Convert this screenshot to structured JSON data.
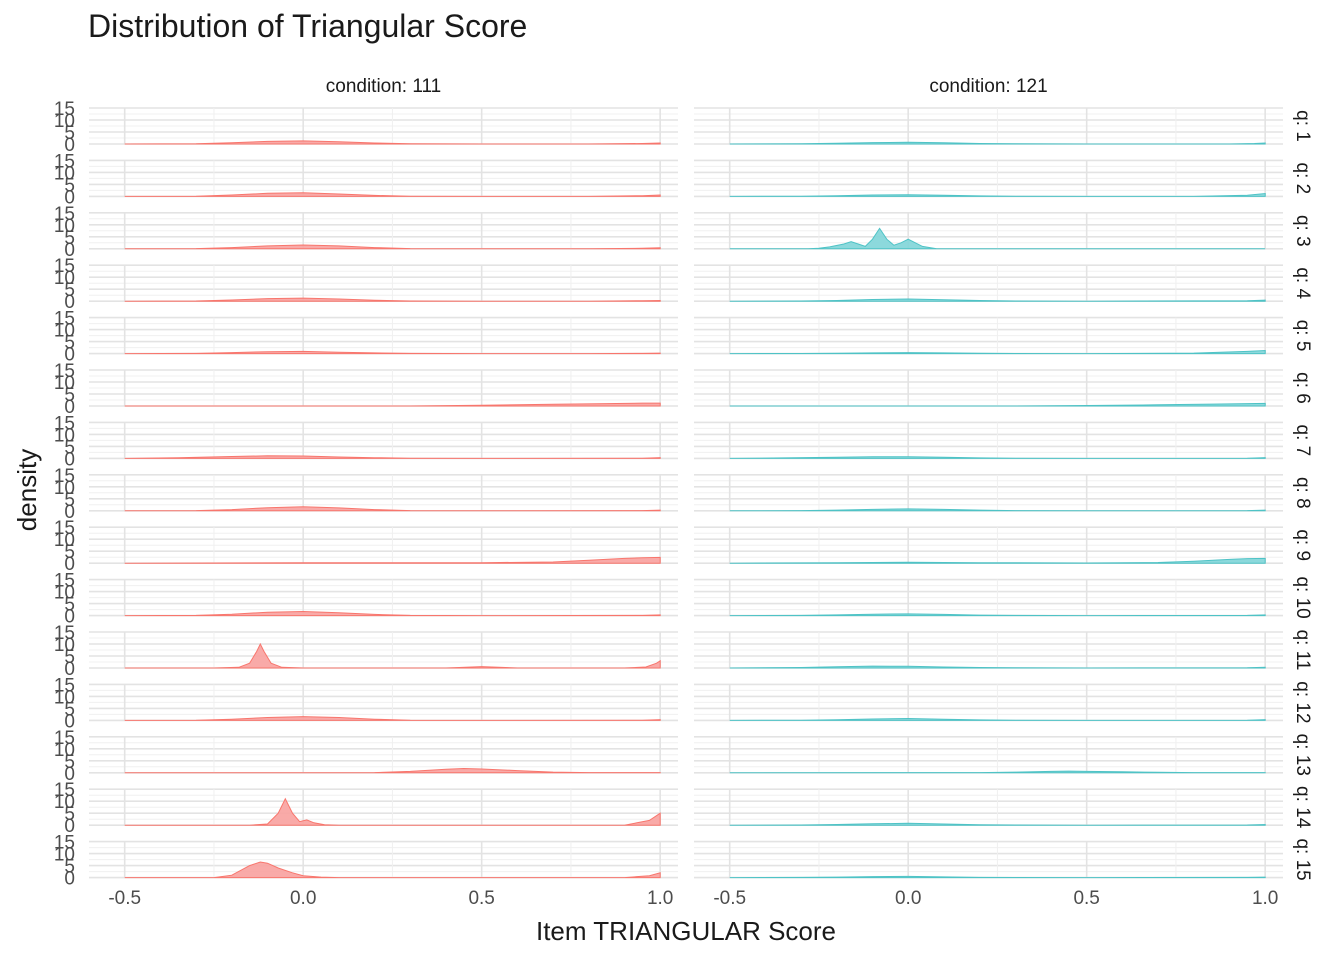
{
  "chart_data": {
    "type": "area",
    "title": "Distribution of Triangular Score",
    "xlabel": "Item TRIANGULAR Score",
    "ylabel": "density",
    "xlim": [
      -0.6,
      1.05
    ],
    "ylim": [
      0,
      15
    ],
    "x_ticks": [
      -0.5,
      0.0,
      0.5,
      1.0
    ],
    "x_tick_labels": [
      "-0.5",
      "0.0",
      "0.5",
      "1.0"
    ],
    "y_ticks": [
      0,
      5,
      10,
      15
    ],
    "y_tick_labels": [
      "0",
      "5",
      "10",
      "15"
    ],
    "grid": true,
    "facet_columns": [
      {
        "label": "condition: 111",
        "color": "#F8A19F",
        "line": "#F8766D"
      },
      {
        "label": "condition: 121",
        "color": "#7FD5D8",
        "line": "#4FC3C6"
      }
    ],
    "facet_rows": [
      "q: 1",
      "q: 2",
      "q: 3",
      "q: 4",
      "q: 5",
      "q: 6",
      "q: 7",
      "q: 8",
      "q: 9",
      "q: 10",
      "q: 11",
      "q: 12",
      "q: 13",
      "q: 14",
      "q: 15"
    ],
    "panels": {
      "condition: 111": [
        {
          "x": [
            -0.5,
            -0.3,
            -0.2,
            -0.1,
            0.0,
            0.1,
            0.2,
            0.3,
            0.5,
            0.8,
            0.95,
            1.0
          ],
          "y": [
            0,
            0.1,
            0.5,
            1.1,
            1.3,
            0.9,
            0.4,
            0.1,
            0,
            0,
            0.2,
            0.4
          ]
        },
        {
          "x": [
            -0.5,
            -0.3,
            -0.2,
            -0.1,
            0.0,
            0.1,
            0.2,
            0.3,
            0.5,
            0.8,
            0.95,
            1.0
          ],
          "y": [
            0,
            0.1,
            0.6,
            1.3,
            1.5,
            1.0,
            0.4,
            0.1,
            0,
            0,
            0.3,
            0.6
          ]
        },
        {
          "x": [
            -0.5,
            -0.3,
            -0.2,
            -0.1,
            0.0,
            0.1,
            0.2,
            0.3,
            0.5,
            0.8,
            0.95,
            1.0
          ],
          "y": [
            0,
            0.1,
            0.5,
            1.2,
            1.6,
            1.2,
            0.5,
            0.1,
            0,
            0,
            0.2,
            0.4
          ]
        },
        {
          "x": [
            -0.5,
            -0.3,
            -0.2,
            -0.1,
            0.0,
            0.1,
            0.2,
            0.3,
            0.5,
            0.8,
            0.95,
            1.0
          ],
          "y": [
            0,
            0.1,
            0.5,
            1.1,
            1.3,
            0.9,
            0.4,
            0.1,
            0,
            0,
            0.2,
            0.3
          ]
        },
        {
          "x": [
            -0.5,
            -0.3,
            -0.2,
            -0.1,
            0.0,
            0.1,
            0.2,
            0.3,
            0.5,
            0.8,
            0.95,
            1.0
          ],
          "y": [
            0,
            0.1,
            0.4,
            0.8,
            0.9,
            0.6,
            0.3,
            0.1,
            0,
            0,
            0.1,
            0.2
          ]
        },
        {
          "x": [
            -0.5,
            0.0,
            0.3,
            0.5,
            0.7,
            0.85,
            0.95,
            1.0
          ],
          "y": [
            0,
            0,
            0,
            0.3,
            0.7,
            1.0,
            1.2,
            1.2
          ]
        },
        {
          "x": [
            -0.5,
            -0.35,
            -0.2,
            -0.1,
            0.0,
            0.1,
            0.2,
            0.3,
            0.5,
            0.95,
            1.0
          ],
          "y": [
            0,
            0.3,
            0.8,
            1.1,
            1.0,
            0.6,
            0.3,
            0.1,
            0,
            0.1,
            0.3
          ]
        },
        {
          "x": [
            -0.5,
            -0.3,
            -0.2,
            -0.1,
            0.0,
            0.1,
            0.2,
            0.3,
            0.5,
            0.95,
            1.0
          ],
          "y": [
            0,
            0.1,
            0.5,
            1.3,
            1.7,
            1.2,
            0.5,
            0.1,
            0,
            0.1,
            0.3
          ]
        },
        {
          "x": [
            -0.5,
            0.0,
            0.5,
            0.7,
            0.8,
            0.9,
            0.95,
            1.0
          ],
          "y": [
            0,
            0.2,
            0.2,
            0.5,
            1.2,
            2.0,
            2.3,
            2.4
          ]
        },
        {
          "x": [
            -0.5,
            -0.3,
            -0.2,
            -0.1,
            0.0,
            0.1,
            0.2,
            0.3,
            0.5,
            0.95,
            1.0
          ],
          "y": [
            0,
            0.1,
            0.6,
            1.4,
            1.7,
            1.2,
            0.5,
            0.1,
            0,
            0.1,
            0.3
          ]
        },
        {
          "x": [
            -0.5,
            -0.25,
            -0.18,
            -0.15,
            -0.13,
            -0.12,
            -0.11,
            -0.09,
            -0.06,
            0.0,
            0.4,
            0.5,
            0.6,
            0.9,
            0.96,
            0.99,
            1.0
          ],
          "y": [
            0,
            0,
            0.3,
            2.0,
            7.0,
            10.0,
            7.0,
            2.0,
            0.3,
            0,
            0,
            0.6,
            0,
            0,
            0.4,
            2.0,
            3.0
          ]
        },
        {
          "x": [
            -0.5,
            -0.3,
            -0.2,
            -0.1,
            0.0,
            0.1,
            0.2,
            0.3,
            0.5,
            0.95,
            1.0
          ],
          "y": [
            0,
            0.1,
            0.5,
            1.2,
            1.6,
            1.2,
            0.5,
            0.1,
            0,
            0.1,
            0.3
          ]
        },
        {
          "x": [
            -0.5,
            0.0,
            0.2,
            0.3,
            0.4,
            0.45,
            0.5,
            0.6,
            0.7,
            0.8,
            1.0
          ],
          "y": [
            0,
            0,
            0.1,
            0.6,
            1.5,
            1.8,
            1.6,
            0.9,
            0.3,
            0.1,
            0.1
          ]
        },
        {
          "x": [
            -0.5,
            -0.15,
            -0.1,
            -0.07,
            -0.05,
            -0.03,
            -0.01,
            0.01,
            0.03,
            0.06,
            0.1,
            0.9,
            0.97,
            1.0
          ],
          "y": [
            0,
            0,
            0.5,
            5.0,
            11.0,
            5.0,
            1.5,
            2.2,
            1.0,
            0.2,
            0,
            0,
            2.0,
            5.0
          ]
        },
        {
          "x": [
            -0.5,
            -0.25,
            -0.2,
            -0.15,
            -0.12,
            -0.1,
            -0.07,
            -0.03,
            0.0,
            0.05,
            0.1,
            0.9,
            0.97,
            1.0
          ],
          "y": [
            0,
            0,
            1.0,
            5.0,
            6.5,
            6.0,
            4.0,
            2.0,
            0.8,
            0.2,
            0,
            0,
            0.8,
            2.0
          ]
        }
      ],
      "condition: 121": [
        {
          "x": [
            -0.5,
            -0.3,
            -0.2,
            -0.1,
            0.0,
            0.1,
            0.2,
            0.3,
            0.5,
            0.9,
            0.97,
            1.0
          ],
          "y": [
            0,
            0.1,
            0.3,
            0.6,
            0.7,
            0.5,
            0.2,
            0.1,
            0,
            0,
            0.2,
            0.4
          ]
        },
        {
          "x": [
            -0.5,
            -0.3,
            -0.2,
            -0.1,
            0.0,
            0.1,
            0.2,
            0.3,
            0.5,
            0.8,
            0.95,
            1.0
          ],
          "y": [
            0,
            0.1,
            0.3,
            0.6,
            0.7,
            0.5,
            0.2,
            0.1,
            0,
            0,
            0.5,
            1.2
          ]
        },
        {
          "x": [
            -0.5,
            -0.28,
            -0.25,
            -0.22,
            -0.18,
            -0.16,
            -0.14,
            -0.12,
            -0.1,
            -0.08,
            -0.06,
            -0.04,
            -0.02,
            0.0,
            0.02,
            0.04,
            0.08,
            0.5,
            1.0
          ],
          "y": [
            0,
            0,
            0.2,
            0.8,
            2.0,
            3.0,
            2.0,
            1.0,
            4.0,
            8.5,
            4.0,
            1.5,
            2.5,
            4.0,
            2.5,
            1.0,
            0,
            0,
            0
          ]
        },
        {
          "x": [
            -0.5,
            -0.3,
            -0.2,
            -0.1,
            0.0,
            0.1,
            0.2,
            0.3,
            0.5,
            0.95,
            1.0
          ],
          "y": [
            0,
            0.1,
            0.3,
            0.7,
            0.9,
            0.6,
            0.3,
            0.1,
            0,
            0.2,
            0.4
          ]
        },
        {
          "x": [
            -0.5,
            -0.3,
            -0.2,
            -0.1,
            0.0,
            0.1,
            0.2,
            0.3,
            0.5,
            0.8,
            0.95,
            1.0
          ],
          "y": [
            0,
            0.05,
            0.15,
            0.3,
            0.4,
            0.3,
            0.15,
            0.05,
            0,
            0.2,
            0.9,
            1.3
          ]
        },
        {
          "x": [
            -0.5,
            0.0,
            0.3,
            0.5,
            0.7,
            0.85,
            0.95,
            1.0
          ],
          "y": [
            0,
            0,
            0,
            0.2,
            0.5,
            0.8,
            1.0,
            1.1
          ]
        },
        {
          "x": [
            -0.5,
            -0.35,
            -0.2,
            -0.1,
            0.0,
            0.1,
            0.2,
            0.3,
            0.5,
            0.95,
            1.0
          ],
          "y": [
            0,
            0.2,
            0.5,
            0.7,
            0.7,
            0.5,
            0.2,
            0.1,
            0,
            0.1,
            0.3
          ]
        },
        {
          "x": [
            -0.5,
            -0.3,
            -0.2,
            -0.1,
            0.0,
            0.1,
            0.2,
            0.3,
            0.5,
            0.95,
            1.0
          ],
          "y": [
            0,
            0.1,
            0.3,
            0.6,
            0.8,
            0.6,
            0.3,
            0.1,
            0,
            0.1,
            0.3
          ]
        },
        {
          "x": [
            -0.5,
            -0.2,
            0.0,
            0.2,
            0.5,
            0.7,
            0.8,
            0.9,
            0.95,
            1.0
          ],
          "y": [
            0,
            0.2,
            0.4,
            0.2,
            0.1,
            0.3,
            0.8,
            1.6,
            1.9,
            2.0
          ]
        },
        {
          "x": [
            -0.5,
            -0.3,
            -0.2,
            -0.1,
            0.0,
            0.1,
            0.2,
            0.3,
            0.5,
            0.95,
            1.0
          ],
          "y": [
            0,
            0.1,
            0.3,
            0.6,
            0.7,
            0.5,
            0.2,
            0.1,
            0,
            0.1,
            0.3
          ]
        },
        {
          "x": [
            -0.5,
            -0.3,
            -0.2,
            -0.1,
            0.0,
            0.1,
            0.2,
            0.3,
            0.5,
            0.95,
            1.0
          ],
          "y": [
            0,
            0.2,
            0.5,
            0.8,
            0.7,
            0.4,
            0.2,
            0.1,
            0,
            0.1,
            0.3
          ]
        },
        {
          "x": [
            -0.5,
            -0.3,
            -0.2,
            -0.1,
            0.0,
            0.1,
            0.2,
            0.3,
            0.5,
            0.95,
            1.0
          ],
          "y": [
            0,
            0.1,
            0.3,
            0.6,
            0.8,
            0.5,
            0.2,
            0.1,
            0,
            0.1,
            0.3
          ]
        },
        {
          "x": [
            -0.5,
            0.0,
            0.2,
            0.3,
            0.4,
            0.45,
            0.5,
            0.6,
            0.7,
            0.8,
            1.0
          ],
          "y": [
            0,
            0.1,
            0.1,
            0.3,
            0.6,
            0.7,
            0.6,
            0.4,
            0.2,
            0.1,
            0.1
          ]
        },
        {
          "x": [
            -0.5,
            -0.3,
            -0.2,
            -0.1,
            0.0,
            0.1,
            0.2,
            0.3,
            0.5,
            0.95,
            1.0
          ],
          "y": [
            0,
            0.1,
            0.3,
            0.6,
            0.8,
            0.5,
            0.2,
            0.1,
            0,
            0.1,
            0.3
          ]
        },
        {
          "x": [
            -0.5,
            -0.3,
            -0.2,
            -0.1,
            0.0,
            0.1,
            0.2,
            0.3,
            0.5,
            0.95,
            1.0
          ],
          "y": [
            0,
            0.1,
            0.2,
            0.4,
            0.5,
            0.3,
            0.1,
            0.05,
            0,
            0.1,
            0.2
          ]
        }
      ]
    }
  }
}
